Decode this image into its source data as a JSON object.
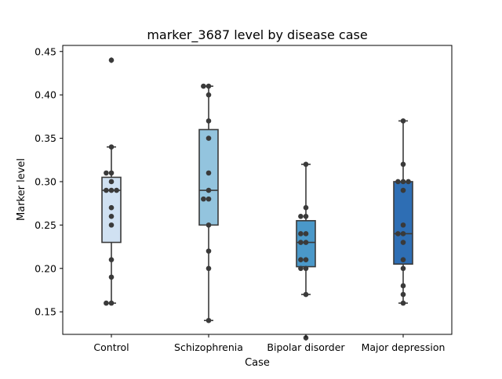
{
  "chart_data": {
    "type": "box",
    "title": "marker_3687 level by disease case",
    "xlabel": "Case",
    "ylabel": "Marker level",
    "ylim": [
      0.124,
      0.457
    ],
    "yticks": [
      0.15,
      0.2,
      0.25,
      0.3,
      0.35,
      0.4,
      0.45
    ],
    "ytick_labels": [
      "0.15",
      "0.20",
      "0.25",
      "0.30",
      "0.35",
      "0.40",
      "0.45"
    ],
    "categories": [
      "Control",
      "Schizophrenia",
      "Bipolar disorder",
      "Major depression"
    ],
    "colors": [
      "#d0e1f2",
      "#93c4de",
      "#4a98c9",
      "#2e6eb4"
    ],
    "boxes": [
      {
        "category": "Control",
        "q1": 0.23,
        "median": 0.29,
        "q3": 0.305,
        "whisker_low": 0.16,
        "whisker_high": 0.34,
        "outliers": [
          0.44
        ]
      },
      {
        "category": "Schizophrenia",
        "q1": 0.25,
        "median": 0.29,
        "q3": 0.36,
        "whisker_low": 0.14,
        "whisker_high": 0.41,
        "outliers": []
      },
      {
        "category": "Bipolar disorder",
        "q1": 0.202,
        "median": 0.23,
        "q3": 0.255,
        "whisker_low": 0.17,
        "whisker_high": 0.32,
        "outliers": [
          0.12
        ]
      },
      {
        "category": "Major depression",
        "q1": 0.205,
        "median": 0.24,
        "q3": 0.3,
        "whisker_low": 0.16,
        "whisker_high": 0.37,
        "outliers": []
      }
    ],
    "points": [
      [
        0.44,
        0.34,
        0.31,
        0.31,
        0.3,
        0.29,
        0.29,
        0.29,
        0.27,
        0.26,
        0.25,
        0.21,
        0.19,
        0.16,
        0.16
      ],
      [
        0.41,
        0.41,
        0.4,
        0.37,
        0.35,
        0.31,
        0.29,
        0.28,
        0.28,
        0.25,
        0.22,
        0.2,
        0.14
      ],
      [
        0.32,
        0.27,
        0.26,
        0.26,
        0.24,
        0.24,
        0.23,
        0.23,
        0.21,
        0.21,
        0.2,
        0.2,
        0.17,
        0.12
      ],
      [
        0.37,
        0.32,
        0.3,
        0.3,
        0.3,
        0.29,
        0.25,
        0.24,
        0.24,
        0.23,
        0.21,
        0.2,
        0.18,
        0.17,
        0.16
      ]
    ],
    "grid": false,
    "legend": "none"
  }
}
